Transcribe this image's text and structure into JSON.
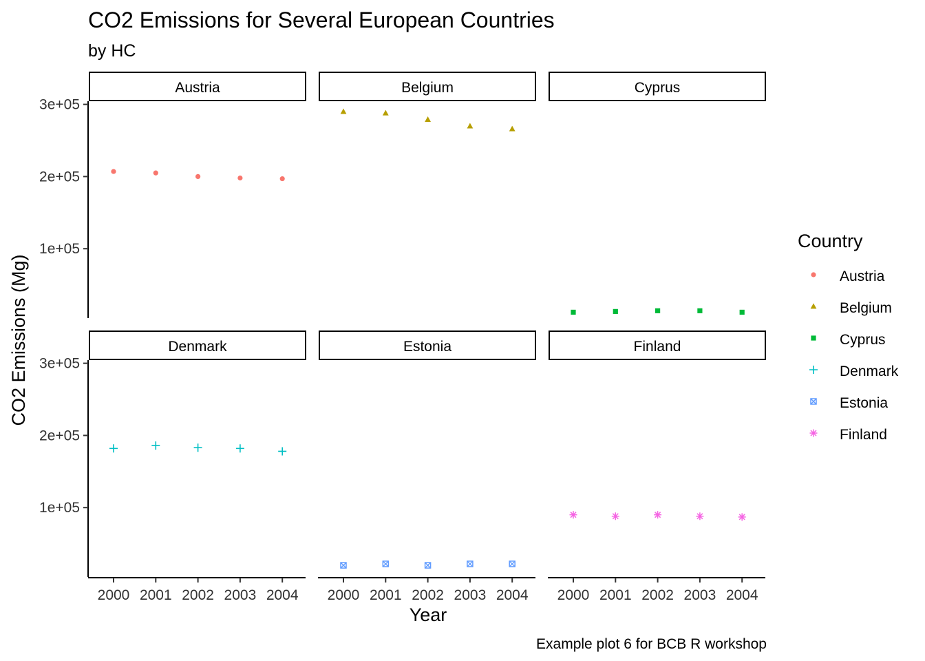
{
  "chart_data": {
    "type": "scatter",
    "title": "CO2 Emissions for Several European Countries",
    "subtitle": "by HC",
    "caption": "Example plot 6 for BCB R workshop",
    "xlabel": "Year",
    "ylabel": "CO2 Emissions (Mg)",
    "x": [
      2000,
      2001,
      2002,
      2003,
      2004
    ],
    "x_tick_labels": [
      "2000",
      "2001",
      "2002",
      "2003",
      "2004"
    ],
    "y_ticks": [
      100000,
      200000,
      300000
    ],
    "y_tick_labels": [
      "1e+05",
      "2e+05",
      "3e+05"
    ],
    "ylim": [
      0,
      300000
    ],
    "facet_layout": "3 columns x 2 rows, shared axes",
    "grid": false,
    "legend": {
      "title": "Country",
      "position": "right"
    },
    "series": [
      {
        "name": "Austria",
        "color": "#F8766D",
        "shape": "circle",
        "values": [
          207000,
          205000,
          200000,
          198000,
          197000
        ]
      },
      {
        "name": "Belgium",
        "color": "#B79F00",
        "shape": "triangle",
        "values": [
          290000,
          288000,
          279000,
          270000,
          266000
        ]
      },
      {
        "name": "Cyprus",
        "color": "#00BA38",
        "shape": "square",
        "values": [
          12000,
          13000,
          14000,
          14000,
          12000
        ]
      },
      {
        "name": "Denmark",
        "color": "#00BFC4",
        "shape": "plus",
        "values": [
          182000,
          186000,
          183000,
          182000,
          178000
        ]
      },
      {
        "name": "Estonia",
        "color": "#619CFF",
        "shape": "square-x",
        "values": [
          20000,
          22000,
          20000,
          22000,
          22000
        ]
      },
      {
        "name": "Finland",
        "color": "#F564E3",
        "shape": "asterisk",
        "values": [
          90000,
          88000,
          90000,
          88000,
          87000
        ]
      }
    ]
  }
}
